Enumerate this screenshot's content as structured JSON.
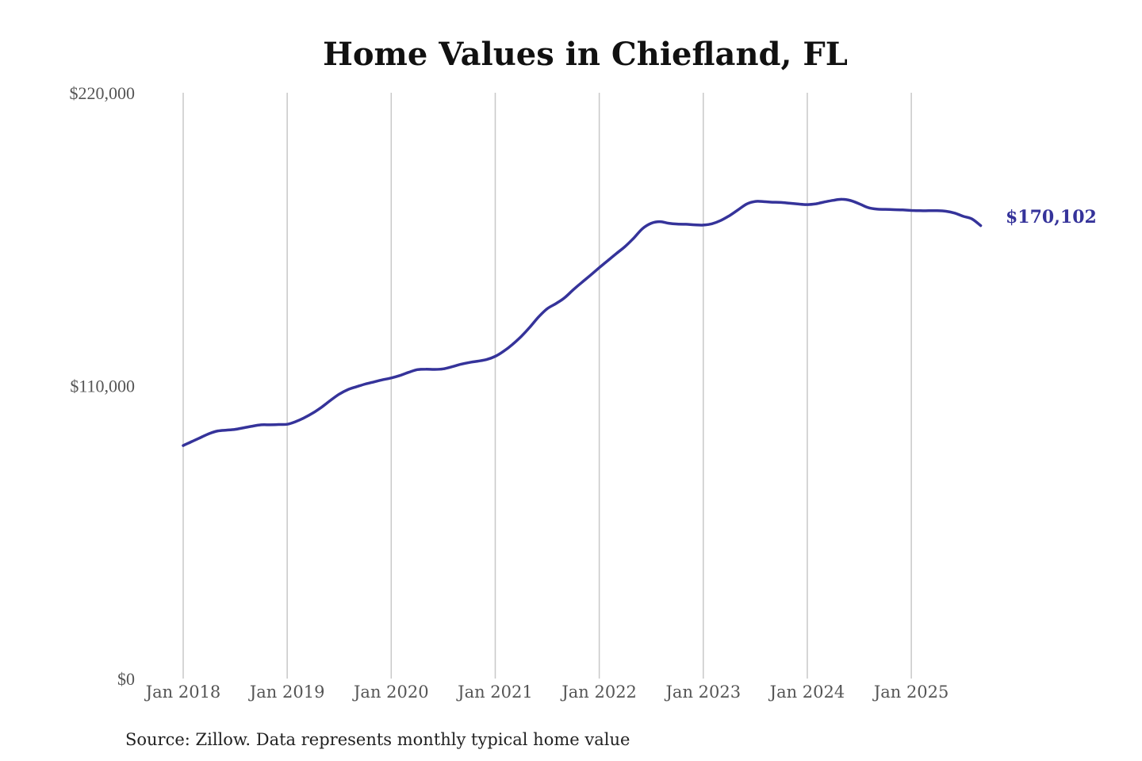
{
  "chart_data": {
    "type": "line",
    "title": "Home Values in Chiefland, FL",
    "source": "Source: Zillow. Data represents monthly typical home value",
    "xlabel": "",
    "ylabel": "",
    "ylim": [
      0,
      220000
    ],
    "y_ticks": [
      0,
      110000,
      220000
    ],
    "y_tick_labels": [
      "$0",
      "$110,000",
      "$220,000"
    ],
    "x_ticks": [
      "2018-01",
      "2019-01",
      "2020-01",
      "2021-01",
      "2022-01",
      "2023-01",
      "2024-01",
      "2025-01"
    ],
    "x_tick_labels": [
      "Jan 2018",
      "Jan 2019",
      "Jan 2020",
      "Jan 2021",
      "Jan 2022",
      "Jan 2023",
      "Jan 2024",
      "Jan 2025"
    ],
    "grid": "vertical",
    "end_label": "$170,102",
    "color": "#35339a",
    "series": [
      {
        "x": [
          "2018-01",
          "2018-02",
          "2018-03",
          "2018-04",
          "2018-05",
          "2018-06",
          "2018-07",
          "2018-08",
          "2018-09",
          "2018-10",
          "2018-11",
          "2018-12",
          "2019-01",
          "2019-02",
          "2019-03",
          "2019-04",
          "2019-05",
          "2019-06",
          "2019-07",
          "2019-08",
          "2019-09",
          "2019-10",
          "2019-11",
          "2019-12",
          "2020-01",
          "2020-02",
          "2020-03",
          "2020-04",
          "2020-05",
          "2020-06",
          "2020-07",
          "2020-08",
          "2020-09",
          "2020-10",
          "2020-11",
          "2020-12",
          "2021-01",
          "2021-02",
          "2021-03",
          "2021-04",
          "2021-05",
          "2021-06",
          "2021-07",
          "2021-08",
          "2021-09",
          "2021-10",
          "2021-11",
          "2021-12",
          "2022-01",
          "2022-02",
          "2022-03",
          "2022-04",
          "2022-05",
          "2022-06",
          "2022-07",
          "2022-08",
          "2022-09",
          "2022-10",
          "2022-11",
          "2022-12",
          "2023-01",
          "2023-02",
          "2023-03",
          "2023-04",
          "2023-05",
          "2023-06",
          "2023-07",
          "2023-08",
          "2023-09",
          "2023-10",
          "2023-11",
          "2023-12",
          "2024-01",
          "2024-02",
          "2024-03",
          "2024-04",
          "2024-05",
          "2024-06",
          "2024-07",
          "2024-08",
          "2024-09",
          "2024-10",
          "2024-11",
          "2024-12",
          "2025-01",
          "2025-02",
          "2025-03",
          "2025-04",
          "2025-05",
          "2025-06",
          "2025-07",
          "2025-08",
          "2025-09"
        ],
        "values": [
          87500,
          89000,
          90500,
          92000,
          93000,
          93300,
          93600,
          94200,
          94800,
          95300,
          95300,
          95400,
          95500,
          96500,
          98000,
          99800,
          102000,
          104500,
          106800,
          108500,
          109600,
          110600,
          111400,
          112200,
          112900,
          113800,
          115000,
          116000,
          116200,
          116100,
          116300,
          117100,
          118000,
          118700,
          119200,
          119800,
          121000,
          123000,
          125500,
          128500,
          132000,
          135800,
          138900,
          140800,
          143000,
          146000,
          148800,
          151500,
          154300,
          157000,
          159700,
          162300,
          165500,
          169000,
          171000,
          171600,
          171000,
          170700,
          170600,
          170400,
          170300,
          170800,
          172000,
          173800,
          176000,
          178200,
          179200,
          179100,
          178900,
          178800,
          178500,
          178200,
          178000,
          178300,
          179000,
          179600,
          180000,
          179500,
          178300,
          176900,
          176300,
          176200,
          176100,
          176000,
          175800,
          175700,
          175700,
          175700,
          175500,
          174800,
          173600,
          172600,
          170102
        ]
      }
    ]
  }
}
